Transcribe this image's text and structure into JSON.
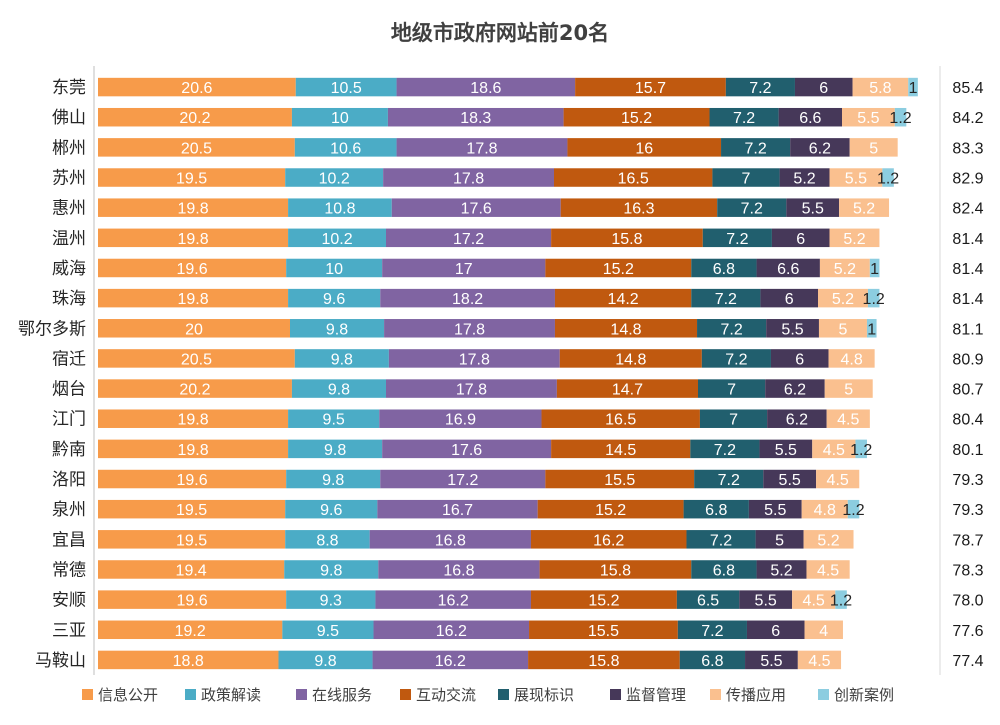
{
  "chart_data": {
    "type": "bar",
    "orientation": "horizontal",
    "stacked": true,
    "title": "地级市政府网站前20名",
    "categories": [
      "东莞",
      "佛山",
      "郴州",
      "苏州",
      "惠州",
      "温州",
      "威海",
      "珠海",
      "鄂尔多斯",
      "宿迁",
      "烟台",
      "江门",
      "黔南",
      "洛阳",
      "泉州",
      "宜昌",
      "常德",
      "安顺",
      "三亚",
      "马鞍山"
    ],
    "series": [
      {
        "name": "信息公开",
        "color": "#F79B4A",
        "label_color": "#ffffff",
        "values": [
          20.6,
          20.2,
          20.5,
          19.5,
          19.8,
          19.8,
          19.6,
          19.8,
          20,
          20.5,
          20.2,
          19.8,
          19.8,
          19.6,
          19.5,
          19.5,
          19.4,
          19.6,
          19.2,
          18.8
        ]
      },
      {
        "name": "政策解读",
        "color": "#4BACC6",
        "label_color": "#ffffff",
        "values": [
          10.5,
          10,
          10.6,
          10.2,
          10.8,
          10.2,
          10,
          9.6,
          9.8,
          9.8,
          9.8,
          9.5,
          9.8,
          9.8,
          9.6,
          8.8,
          9.8,
          9.3,
          9.5,
          9.8
        ]
      },
      {
        "name": "在线服务",
        "color": "#8064A2",
        "label_color": "#ffffff",
        "values": [
          18.6,
          18.3,
          17.8,
          17.8,
          17.6,
          17.2,
          17,
          18.2,
          17.8,
          17.8,
          17.8,
          16.9,
          17.6,
          17.2,
          16.7,
          16.8,
          16.8,
          16.2,
          16.2,
          16.2
        ]
      },
      {
        "name": "互动交流",
        "color": "#C0590F",
        "label_color": "#ffffff",
        "values": [
          15.7,
          15.2,
          16,
          16.5,
          16.3,
          15.8,
          15.2,
          14.2,
          14.8,
          14.8,
          14.7,
          16.5,
          14.5,
          15.5,
          15.2,
          16.2,
          15.8,
          15.2,
          15.5,
          15.8
        ]
      },
      {
        "name": "展现标识",
        "color": "#215F6E",
        "label_color": "#ffffff",
        "values": [
          7.2,
          7.2,
          7.2,
          7,
          7.2,
          7.2,
          6.8,
          7.2,
          7.2,
          7.2,
          7,
          7,
          7.2,
          7.2,
          6.8,
          7.2,
          6.8,
          6.5,
          7.2,
          6.8
        ]
      },
      {
        "name": "监督管理",
        "color": "#463859",
        "label_color": "#ffffff",
        "values": [
          6,
          6.6,
          6.2,
          5.2,
          5.5,
          6,
          6.6,
          6,
          5.5,
          6,
          6.2,
          6.2,
          5.5,
          5.5,
          5.5,
          5,
          5.2,
          5.5,
          6,
          5.5
        ]
      },
      {
        "name": "传播应用",
        "color": "#FAC08F",
        "label_color": "#ffffff",
        "values": [
          5.8,
          5.5,
          5,
          5.5,
          5.2,
          5.2,
          5.2,
          5.2,
          5,
          4.8,
          5,
          4.5,
          4.5,
          4.5,
          4.8,
          5.2,
          4.5,
          4.5,
          4,
          4.5
        ]
      },
      {
        "name": "创新案例",
        "color": "#8CCDE0",
        "label_color": "#262626",
        "values": [
          1,
          1.2,
          null,
          1.2,
          null,
          null,
          1,
          1.2,
          1,
          null,
          null,
          null,
          1.2,
          null,
          1.2,
          null,
          null,
          1.2,
          null,
          null
        ]
      }
    ],
    "totals": [
      "85.4",
      "84.2",
      "83.3",
      "82.9",
      "82.4",
      "81.4",
      "81.4",
      "81.4",
      "81.1",
      "80.9",
      "80.7",
      "80.4",
      "80.1",
      "79.3",
      "79.3",
      "78.7",
      "78.3",
      "78.0",
      "77.6",
      "77.4"
    ],
    "xlim": [
      0,
      100
    ],
    "legend_position": "bottom",
    "grid": false
  }
}
